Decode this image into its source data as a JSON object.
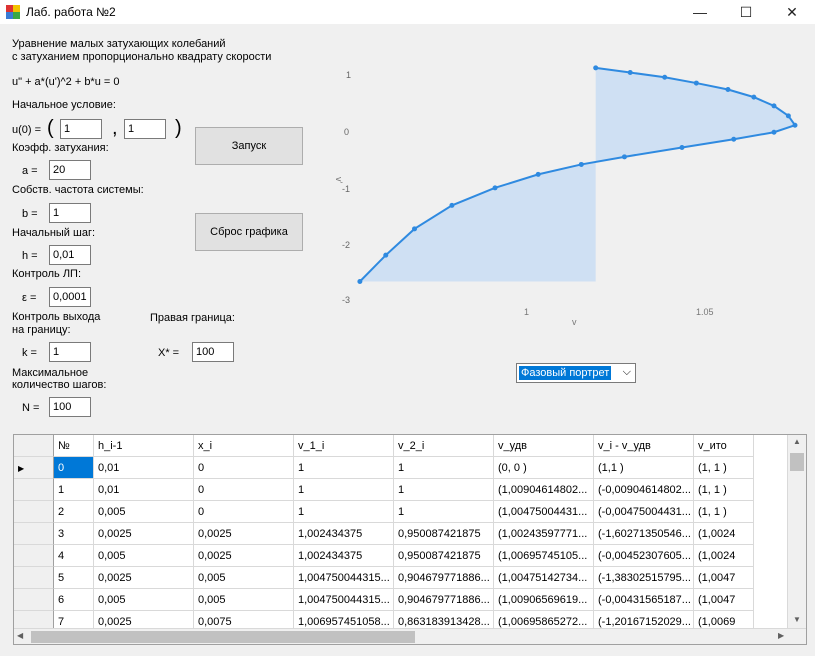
{
  "window": {
    "title": "Лаб. работа №2",
    "min": "—",
    "max": "☐",
    "close": "✕"
  },
  "description": {
    "line1": "Уравнение малых затухающих колебаний",
    "line2": "с затуханием пропорционально квадрату скорости"
  },
  "equation": "u\" + a*(u')^2 + b*u = 0",
  "init": {
    "heading": "Начальное условие:",
    "label": "u(0) =",
    "open_paren": "(",
    "comma": ",",
    "close_paren": ")",
    "v1": "1",
    "v2": "1"
  },
  "damping": {
    "heading": "Коэфф. затухания:",
    "label": "a =",
    "value": "20"
  },
  "freq": {
    "heading": "Собств. частота системы:",
    "label": "b =",
    "value": "1"
  },
  "step": {
    "heading": "Начальный шаг:",
    "label": "h =",
    "value": "0,01"
  },
  "lp": {
    "heading": "Контроль ЛП:",
    "label": "ε =",
    "value": "0,0001"
  },
  "boundary": {
    "heading1": "Контроль выхода",
    "heading2": "на границу:",
    "label": "k =",
    "value": "1"
  },
  "right": {
    "heading": "Правая граница:",
    "label": "X* =",
    "value": "100"
  },
  "maxsteps": {
    "heading1": "Максимальное",
    "heading2": "количество шагов:",
    "label": "N =",
    "value": "100"
  },
  "buttons": {
    "run": "Запуск",
    "reset": "Сброс графика"
  },
  "chart": {
    "ylabel": "v'",
    "xlabel": "v",
    "yticks": [
      "1",
      "0",
      "-1",
      "-2",
      "-3"
    ],
    "xticks": [
      "1",
      "1.05"
    ]
  },
  "chart_data": {
    "type": "line",
    "xlabel": "v",
    "ylabel": "v'",
    "xlim": [
      0.917,
      1.07
    ],
    "ylim": [
      -3,
      1.1
    ],
    "series": [
      {
        "color": "#2f8ae0",
        "points": [
          [
            1.0,
            1.0
          ],
          [
            1.012,
            0.92
          ],
          [
            1.024,
            0.84
          ],
          [
            1.035,
            0.74
          ],
          [
            1.046,
            0.63
          ],
          [
            1.055,
            0.5
          ],
          [
            1.062,
            0.35
          ],
          [
            1.067,
            0.18
          ],
          [
            1.0693,
            0.02
          ],
          [
            1.062,
            -0.1
          ],
          [
            1.048,
            -0.22
          ],
          [
            1.03,
            -0.36
          ],
          [
            1.01,
            -0.52
          ],
          [
            0.995,
            -0.65
          ],
          [
            0.98,
            -0.82
          ],
          [
            0.965,
            -1.05
          ],
          [
            0.95,
            -1.35
          ],
          [
            0.937,
            -1.75
          ],
          [
            0.927,
            -2.2
          ],
          [
            0.918,
            -2.65
          ]
        ]
      }
    ]
  },
  "combo": {
    "selected": "Фазовый портрет",
    "arrow": "⌵"
  },
  "grid": {
    "headers": [
      "№",
      "h_i-1",
      "x_i",
      "v_1_i",
      "v_2_i",
      "v_удв",
      "v_i - v_удв",
      "v_ито"
    ],
    "rows": [
      [
        "0",
        "0,01",
        "0",
        "1",
        "1",
        "(0, 0 )",
        "(1,1 )",
        "(1, 1 )"
      ],
      [
        "1",
        "0,01",
        "0",
        "1",
        "1",
        "(1,00904614802...",
        "(-0,00904614802...",
        "(1, 1 )"
      ],
      [
        "2",
        "0,005",
        "0",
        "1",
        "1",
        "(1,00475004431...",
        "(-0,00475004431...",
        "(1, 1 )"
      ],
      [
        "3",
        "0,0025",
        "0,0025",
        "1,002434375",
        "0,950087421875",
        "(1,00243597771...",
        "(-1,60271350546...",
        "(1,0024"
      ],
      [
        "4",
        "0,005",
        "0,0025",
        "1,002434375",
        "0,950087421875",
        "(1,00695745105...",
        "(-0,00452307605...",
        "(1,0024"
      ],
      [
        "5",
        "0,0025",
        "0,005",
        "1,004750044315...",
        "0,904679771886...",
        "(1,00475142734...",
        "(-1,38302515795...",
        "(1,0047"
      ],
      [
        "6",
        "0,005",
        "0,005",
        "1,004750044315...",
        "0,904679771886...",
        "(1,00906569619...",
        "(-0,00431565187...",
        "(1,0047"
      ],
      [
        "7",
        "0,0025",
        "0,0075",
        "1,006957451058...",
        "0,863183913428...",
        "(1,00695865272...",
        "(-1,20167152029...",
        "(1,0069"
      ]
    ],
    "current_marker": "▶"
  },
  "scroll": {
    "up": "▲",
    "down": "▼",
    "left": "◀",
    "right": "▶"
  }
}
